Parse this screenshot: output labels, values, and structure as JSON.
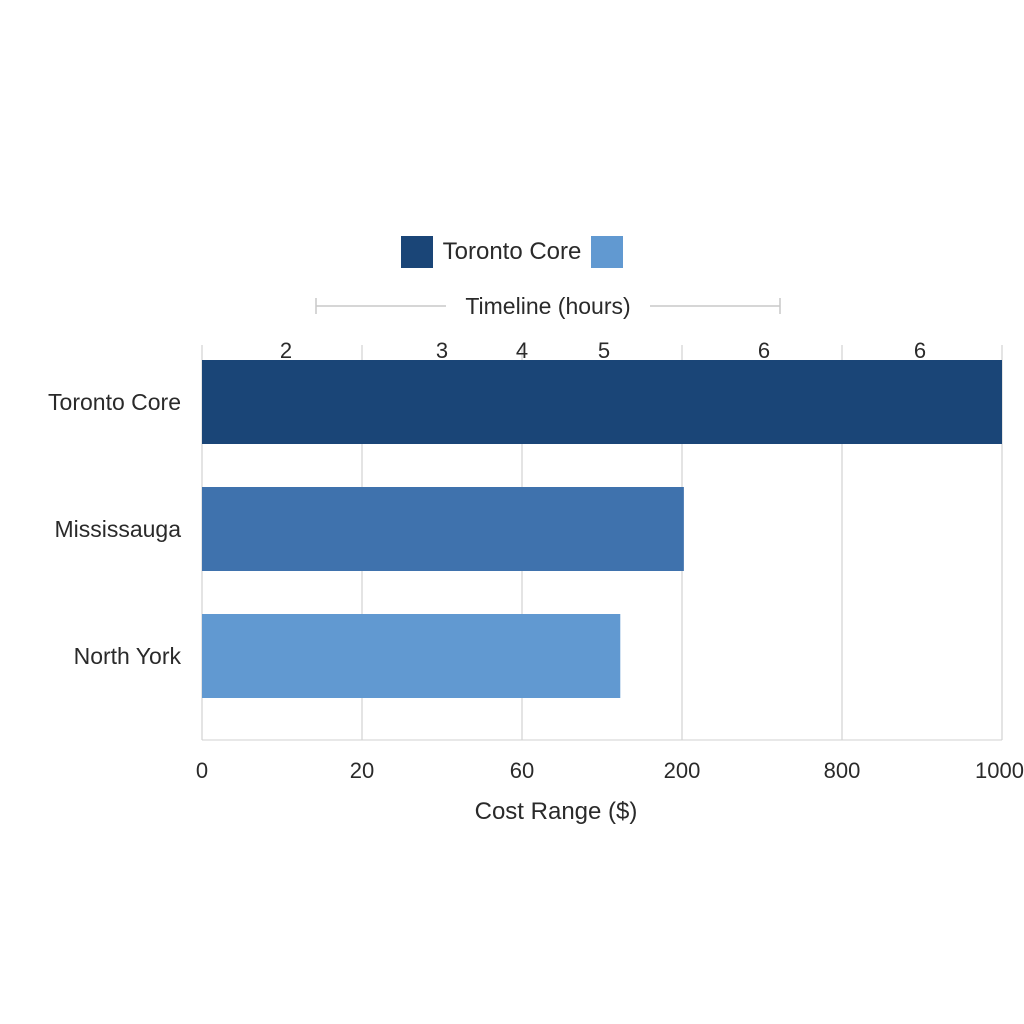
{
  "chart_data": {
    "type": "bar",
    "orientation": "horizontal",
    "title": "",
    "legend": {
      "placement": "top-center",
      "entries": [
        {
          "label": "Toronto Core",
          "color": "#1a4577"
        },
        {
          "label": "",
          "color": "#6199d1"
        }
      ]
    },
    "categories": [
      "Toronto Core",
      "Mississauga",
      "North York"
    ],
    "values": [
      1000,
      207,
      146
    ],
    "colors": [
      "#1a4577",
      "#3f72ad",
      "#6199d1"
    ],
    "xlabel": "Cost Range ($)",
    "x_ticks": [
      "0",
      "20",
      "60",
      "200",
      "800",
      "1000"
    ],
    "x_tick_values": [
      0,
      20,
      60,
      200,
      800,
      1000
    ],
    "secondary_axis": {
      "label": "Timeline (hours)",
      "ticks": [
        "2",
        "3",
        "4",
        "5",
        "6",
        "6"
      ]
    },
    "grid": "vertical"
  }
}
